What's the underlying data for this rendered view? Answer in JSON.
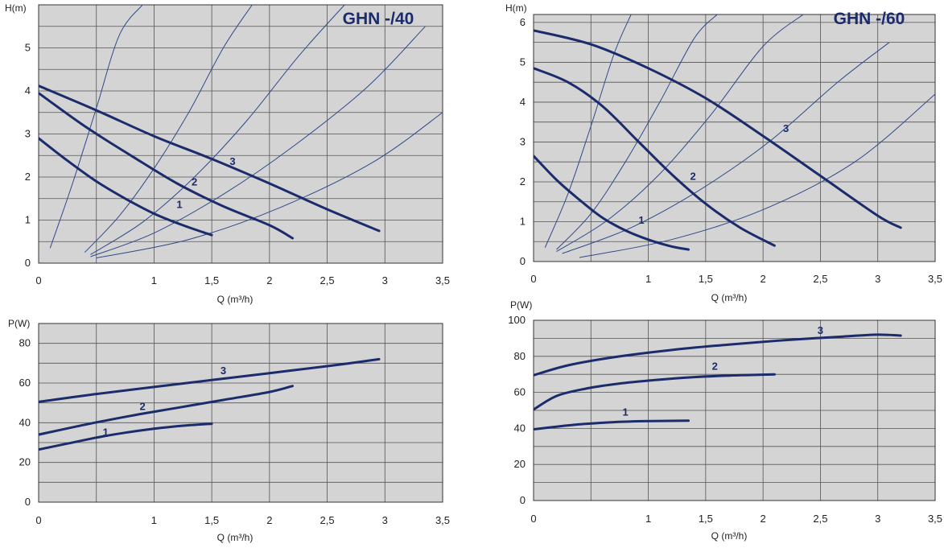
{
  "colors": {
    "plot_bg": "#d4d4d4",
    "grid": "#555555",
    "curve": "#1b2b6b",
    "system_curve": "#2f4a8a",
    "text": "#222222"
  },
  "chart_data": [
    {
      "id": "h40",
      "type": "line",
      "title": "GHN -/40",
      "xlabel": "Q (m³/h)",
      "ylabel": "H(m)",
      "xlim": [
        0,
        3.5
      ],
      "ylim": [
        0,
        6
      ],
      "grid": true,
      "xticks": [
        "0",
        "1",
        "1,5",
        "2",
        "2,5",
        "3",
        "3,5"
      ],
      "yticks": [
        "0",
        "1",
        "2",
        "3",
        "4",
        "5"
      ],
      "series": [
        {
          "name": "1",
          "x": [
            0,
            0.25,
            0.5,
            0.75,
            1.0,
            1.25,
            1.5
          ],
          "y": [
            2.9,
            2.38,
            1.9,
            1.5,
            1.15,
            0.88,
            0.65
          ]
        },
        {
          "name": "2",
          "x": [
            0,
            0.4,
            0.8,
            1.2,
            1.6,
            2.0,
            2.2
          ],
          "y": [
            3.95,
            3.18,
            2.5,
            1.85,
            1.32,
            0.88,
            0.58
          ]
        },
        {
          "name": "3",
          "x": [
            0,
            0.5,
            1.0,
            1.5,
            2.0,
            2.5,
            2.95
          ],
          "y": [
            4.12,
            3.55,
            2.95,
            2.42,
            1.85,
            1.25,
            0.75
          ]
        }
      ],
      "system_curves": [
        {
          "x": [
            0.1,
            0.3,
            0.5,
            0.7,
            0.9
          ],
          "y": [
            0.35,
            1.9,
            3.6,
            5.3,
            6.0
          ]
        },
        {
          "x": [
            0.4,
            0.7,
            1.0,
            1.3,
            1.6,
            1.85
          ],
          "y": [
            0.25,
            1.1,
            2.2,
            3.5,
            5.0,
            6.0
          ]
        },
        {
          "x": [
            0.45,
            0.9,
            1.35,
            1.8,
            2.25,
            2.65
          ],
          "y": [
            0.2,
            0.95,
            2.0,
            3.3,
            4.8,
            6.0
          ]
        },
        {
          "x": [
            0.45,
            1.0,
            1.6,
            2.2,
            2.85,
            3.35
          ],
          "y": [
            0.15,
            0.7,
            1.6,
            2.7,
            4.1,
            5.5
          ]
        },
        {
          "x": [
            0.5,
            1.3,
            2.1,
            2.9,
            3.5
          ],
          "y": [
            0.12,
            0.55,
            1.3,
            2.35,
            3.5
          ]
        }
      ],
      "labels": [
        {
          "text": "1",
          "x": 1.22,
          "y": 1.28
        },
        {
          "text": "2",
          "x": 1.35,
          "y": 1.8
        },
        {
          "text": "3",
          "x": 1.68,
          "y": 2.28
        }
      ]
    },
    {
      "id": "h60",
      "type": "line",
      "title": "GHN -/60",
      "xlabel": "Q (m³/h)",
      "ylabel": "H(m)",
      "xlim": [
        0,
        3.5
      ],
      "ylim": [
        0,
        6.2
      ],
      "grid": true,
      "xticks": [
        "0",
        "1",
        "1,5",
        "2",
        "2,5",
        "3",
        "3,5"
      ],
      "yticks": [
        "0",
        "1",
        "2",
        "3",
        "4",
        "5",
        "6"
      ],
      "series": [
        {
          "name": "1",
          "x": [
            0,
            0.2,
            0.4,
            0.6,
            0.8,
            1.0,
            1.2,
            1.35
          ],
          "y": [
            2.65,
            2.05,
            1.55,
            1.1,
            0.78,
            0.55,
            0.38,
            0.3
          ]
        },
        {
          "name": "2",
          "x": [
            0,
            0.3,
            0.6,
            0.9,
            1.2,
            1.5,
            1.8,
            2.1
          ],
          "y": [
            4.85,
            4.5,
            3.9,
            3.05,
            2.2,
            1.45,
            0.85,
            0.4
          ]
        },
        {
          "name": "3",
          "x": [
            0,
            0.5,
            1.0,
            1.5,
            2.0,
            2.5,
            3.0,
            3.2
          ],
          "y": [
            5.8,
            5.45,
            4.85,
            4.1,
            3.15,
            2.15,
            1.15,
            0.85
          ]
        }
      ],
      "system_curves": [
        {
          "x": [
            0.1,
            0.3,
            0.5,
            0.7,
            0.85
          ],
          "y": [
            0.35,
            1.7,
            3.4,
            5.2,
            6.2
          ]
        },
        {
          "x": [
            0.2,
            0.5,
            0.8,
            1.1,
            1.4,
            1.6
          ],
          "y": [
            0.3,
            1.2,
            2.5,
            4.0,
            5.6,
            6.2
          ]
        },
        {
          "x": [
            0.2,
            0.65,
            1.1,
            1.55,
            2.0,
            2.35
          ],
          "y": [
            0.25,
            1.05,
            2.2,
            3.7,
            5.4,
            6.2
          ]
        },
        {
          "x": [
            0.25,
            0.85,
            1.45,
            2.05,
            2.65,
            3.1
          ],
          "y": [
            0.2,
            0.85,
            1.8,
            3.0,
            4.5,
            5.5
          ]
        },
        {
          "x": [
            0.4,
            1.2,
            2.0,
            2.8,
            3.5
          ],
          "y": [
            0.1,
            0.55,
            1.3,
            2.5,
            4.2
          ]
        }
      ],
      "labels": [
        {
          "text": "1",
          "x": 0.94,
          "y": 0.95
        },
        {
          "text": "2",
          "x": 1.39,
          "y": 2.05
        },
        {
          "text": "3",
          "x": 2.2,
          "y": 3.25
        }
      ]
    },
    {
      "id": "p40",
      "type": "line",
      "title": "",
      "xlabel": "Q (m³/h)",
      "ylabel": "P(W)",
      "xlim": [
        0,
        3.5
      ],
      "ylim": [
        0,
        90
      ],
      "grid": true,
      "xticks": [
        "0",
        "1",
        "1,5",
        "2",
        "2,5",
        "3",
        "3,5"
      ],
      "yticks": [
        "0",
        "20",
        "40",
        "60",
        "80"
      ],
      "series": [
        {
          "name": "1",
          "x": [
            0,
            0.25,
            0.5,
            0.75,
            1.0,
            1.25,
            1.5
          ],
          "y": [
            26.5,
            29.5,
            32.5,
            35.0,
            37.0,
            38.5,
            39.5
          ]
        },
        {
          "name": "2",
          "x": [
            0,
            0.4,
            0.8,
            1.2,
            1.6,
            2.0,
            2.2
          ],
          "y": [
            34.0,
            39.0,
            43.5,
            47.5,
            51.5,
            55.5,
            58.5
          ]
        },
        {
          "name": "3",
          "x": [
            0,
            0.5,
            1.0,
            1.5,
            2.0,
            2.5,
            2.95
          ],
          "y": [
            50.5,
            54.5,
            58.0,
            61.5,
            65.0,
            68.5,
            72.0
          ]
        }
      ],
      "labels": [
        {
          "text": "1",
          "x": 0.58,
          "y": 33.5
        },
        {
          "text": "2",
          "x": 0.9,
          "y": 46.5
        },
        {
          "text": "3",
          "x": 1.6,
          "y": 64.5
        }
      ]
    },
    {
      "id": "p60",
      "type": "line",
      "title": "",
      "xlabel": "Q (m³/h)",
      "ylabel": "P(W)",
      "xlim": [
        0,
        3.5
      ],
      "ylim": [
        0,
        100
      ],
      "grid": true,
      "xticks": [
        "0",
        "1",
        "1,5",
        "2",
        "2,5",
        "3",
        "3,5"
      ],
      "yticks": [
        "0",
        "20",
        "40",
        "60",
        "80",
        "100"
      ],
      "series": [
        {
          "name": "1",
          "x": [
            0,
            0.2,
            0.45,
            0.7,
            0.95,
            1.2,
            1.35
          ],
          "y": [
            39.5,
            41.0,
            42.5,
            43.5,
            44.0,
            44.2,
            44.3
          ]
        },
        {
          "name": "2",
          "x": [
            0,
            0.2,
            0.45,
            0.7,
            1.0,
            1.4,
            1.8,
            2.1
          ],
          "y": [
            50.5,
            58.0,
            62.0,
            64.5,
            66.5,
            68.5,
            69.5,
            70.0
          ]
        },
        {
          "name": "3",
          "x": [
            0,
            0.3,
            0.7,
            1.2,
            1.7,
            2.2,
            2.7,
            3.0,
            3.2
          ],
          "y": [
            69.5,
            75.0,
            79.5,
            83.5,
            86.5,
            89.0,
            91.0,
            92.0,
            91.5
          ]
        }
      ],
      "labels": [
        {
          "text": "1",
          "x": 0.8,
          "y": 47.0
        },
        {
          "text": "2",
          "x": 1.58,
          "y": 72.5
        },
        {
          "text": "3",
          "x": 2.5,
          "y": 92.5
        }
      ]
    }
  ]
}
